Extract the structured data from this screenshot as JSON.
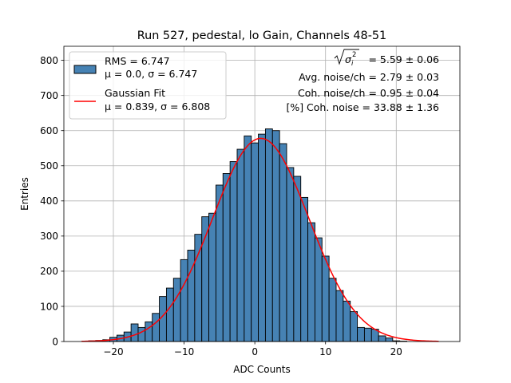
{
  "chart_data": {
    "type": "bar",
    "title": "Run 527, pedestal, lo Gain, Channels 48-51",
    "xlabel": "ADC Counts",
    "ylabel": "Entries",
    "xlim": [
      -27,
      29
    ],
    "ylim": [
      0,
      840
    ],
    "xticks": [
      -20,
      -10,
      0,
      10,
      20
    ],
    "yticks": [
      0,
      100,
      200,
      300,
      400,
      500,
      600,
      700,
      800
    ],
    "grid": true,
    "legend_position": "top-left",
    "bin_width": 1,
    "bins": [
      -23,
      -22,
      -21,
      -20,
      -19,
      -18,
      -17,
      -16,
      -15,
      -14,
      -13,
      -12,
      -11,
      -10,
      -9,
      -8,
      -7,
      -6,
      -5,
      -4,
      -3,
      -2,
      -1,
      0,
      1,
      2,
      3,
      4,
      5,
      6,
      7,
      8,
      9,
      10,
      11,
      12,
      13,
      14,
      15,
      16,
      17,
      18,
      19,
      20,
      21
    ],
    "values": [
      2,
      3,
      5,
      12,
      18,
      27,
      50,
      40,
      56,
      80,
      128,
      152,
      180,
      233,
      260,
      305,
      355,
      365,
      445,
      478,
      512,
      547,
      585,
      565,
      590,
      605,
      600,
      563,
      495,
      470,
      410,
      338,
      295,
      243,
      180,
      145,
      115,
      85,
      40,
      38,
      35,
      16,
      10,
      2,
      1
    ],
    "series": [
      {
        "name": "hist",
        "label_lines": [
          "RMS = 6.747",
          "μ = 0.0, σ = 6.747"
        ],
        "color": "#4682b4",
        "edge": "#000000"
      },
      {
        "name": "Gaussian Fit",
        "label_lines": [
          "Gaussian Fit",
          "μ = 0.839, σ = 6.808"
        ],
        "color": "#ff0000",
        "mu": 0.839,
        "sigma": 6.808,
        "amplitude": 578,
        "x_range": [
          -24.5,
          26
        ]
      }
    ],
    "annotations": {
      "sqrt_label_var": "σ",
      "sqrt_label_sub": "i",
      "sqrt_label_sup": "2",
      "sqrt_value": " = 5.59 ± 0.06",
      "avg_noise": "Avg. noise/ch = 2.79 ± 0.03",
      "coh_noise": "Coh. noise/ch = 0.95 ± 0.04",
      "coh_noise_pct": "[%] Coh. noise = 33.88 ± 1.36"
    }
  }
}
